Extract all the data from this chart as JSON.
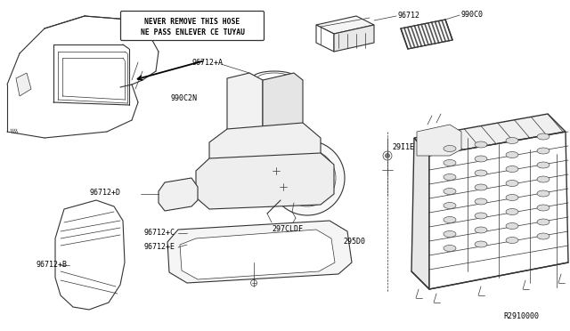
{
  "bg_color": "#ffffff",
  "line_color": "#333333",
  "thin": 0.5,
  "medium": 0.8,
  "thick": 1.0,
  "warning_text_line1": "NEVER REMOVE THIS HOSE",
  "warning_text_line2": "NE PASS ENLEVER CE TUYAU",
  "label_990C2N": "990C2N",
  "label_96712": "96712",
  "label_990C0": "990C0",
  "label_96712A": "96712+A",
  "label_29I1E": "29I1E",
  "label_96712D": "96712+D",
  "label_295D0": "295D0",
  "label_297CLDF": "297CLDF",
  "label_96712C": "96712+C",
  "label_96712B": "96712+B",
  "label_96712E": "96712+E",
  "label_R2910000": "R2910000"
}
